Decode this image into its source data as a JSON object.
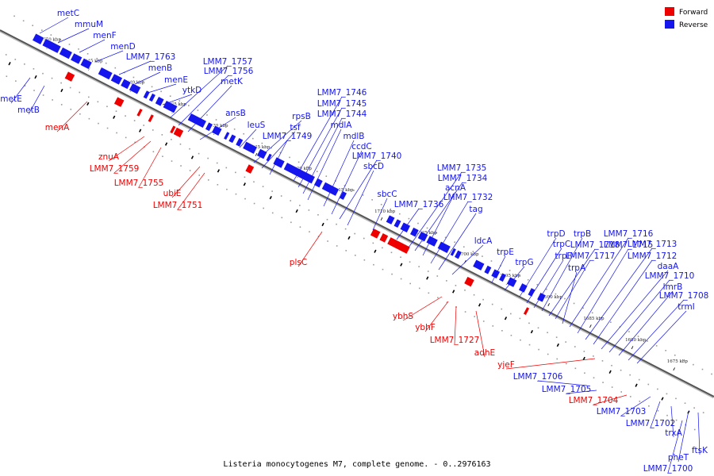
{
  "caption": "Listeria monocytogenes M7, complete genome. - 0..2976163",
  "legend": [
    {
      "label": "Forward",
      "color": "#ee0000"
    },
    {
      "label": "Reverse",
      "color": "#1515ee"
    }
  ],
  "colors": {
    "forward": "#ee0000",
    "reverse": "#1515ee",
    "backbone": "#555555"
  },
  "ticks": [
    "1750 kbp",
    "1745 kbp",
    "1740 kbp",
    "1735 kbp",
    "1730 kbp",
    "1725 kbp",
    "1720 kbp",
    "1715 kbp",
    "1710 kbp",
    "1705 kbp",
    "1700 kbp",
    "1695 kbp",
    "1690 kbp",
    "1685 kbp",
    "1680 kbp",
    "1675 kbp"
  ],
  "genes_reverse": [
    "metC",
    "mmuM",
    "menF",
    "menD",
    "LMM7_1763",
    "menB",
    "menE",
    "ytkD",
    "LMM7_1757",
    "LMM7_1756",
    "metK",
    "ansB",
    "leuS",
    "rpsB",
    "tsf",
    "LMM7_1749",
    "LMM7_1746",
    "LMM7_1745",
    "LMM7_1744",
    "mdlA",
    "mdlB",
    "ccdC",
    "LMM7_1740",
    "sbcD",
    "sbcC",
    "LMM7_1736",
    "LMM7_1735",
    "LMM7_1734",
    "acnA",
    "LMM7_1732",
    "tag",
    "ldcA",
    "trpE",
    "trpG",
    "trpD",
    "trpC",
    "trpF",
    "trpB",
    "LMM7_1718",
    "LMM7_1717",
    "trpA",
    "LMM7_1716",
    "LMM7_1715",
    "LMM7_1713",
    "LMM7_1712",
    "daaA",
    "LMM7_1710",
    "lmrB",
    "LMM7_1708",
    "trmI",
    "metE",
    "metB",
    "LMM7_1706",
    "LMM7_1705",
    "LMM7_1703",
    "LMM7_1702",
    "trxA",
    "pheT",
    "ftsK",
    "LMM7_1700"
  ],
  "genes_forward": [
    "menA",
    "znuA",
    "LMM7_1759",
    "LMM7_1755",
    "ubiE",
    "LMM7_1751",
    "plsC",
    "ybhS",
    "ybhF",
    "LMM7_1727",
    "adhE",
    "yjeF",
    "LMM7_1704"
  ]
}
